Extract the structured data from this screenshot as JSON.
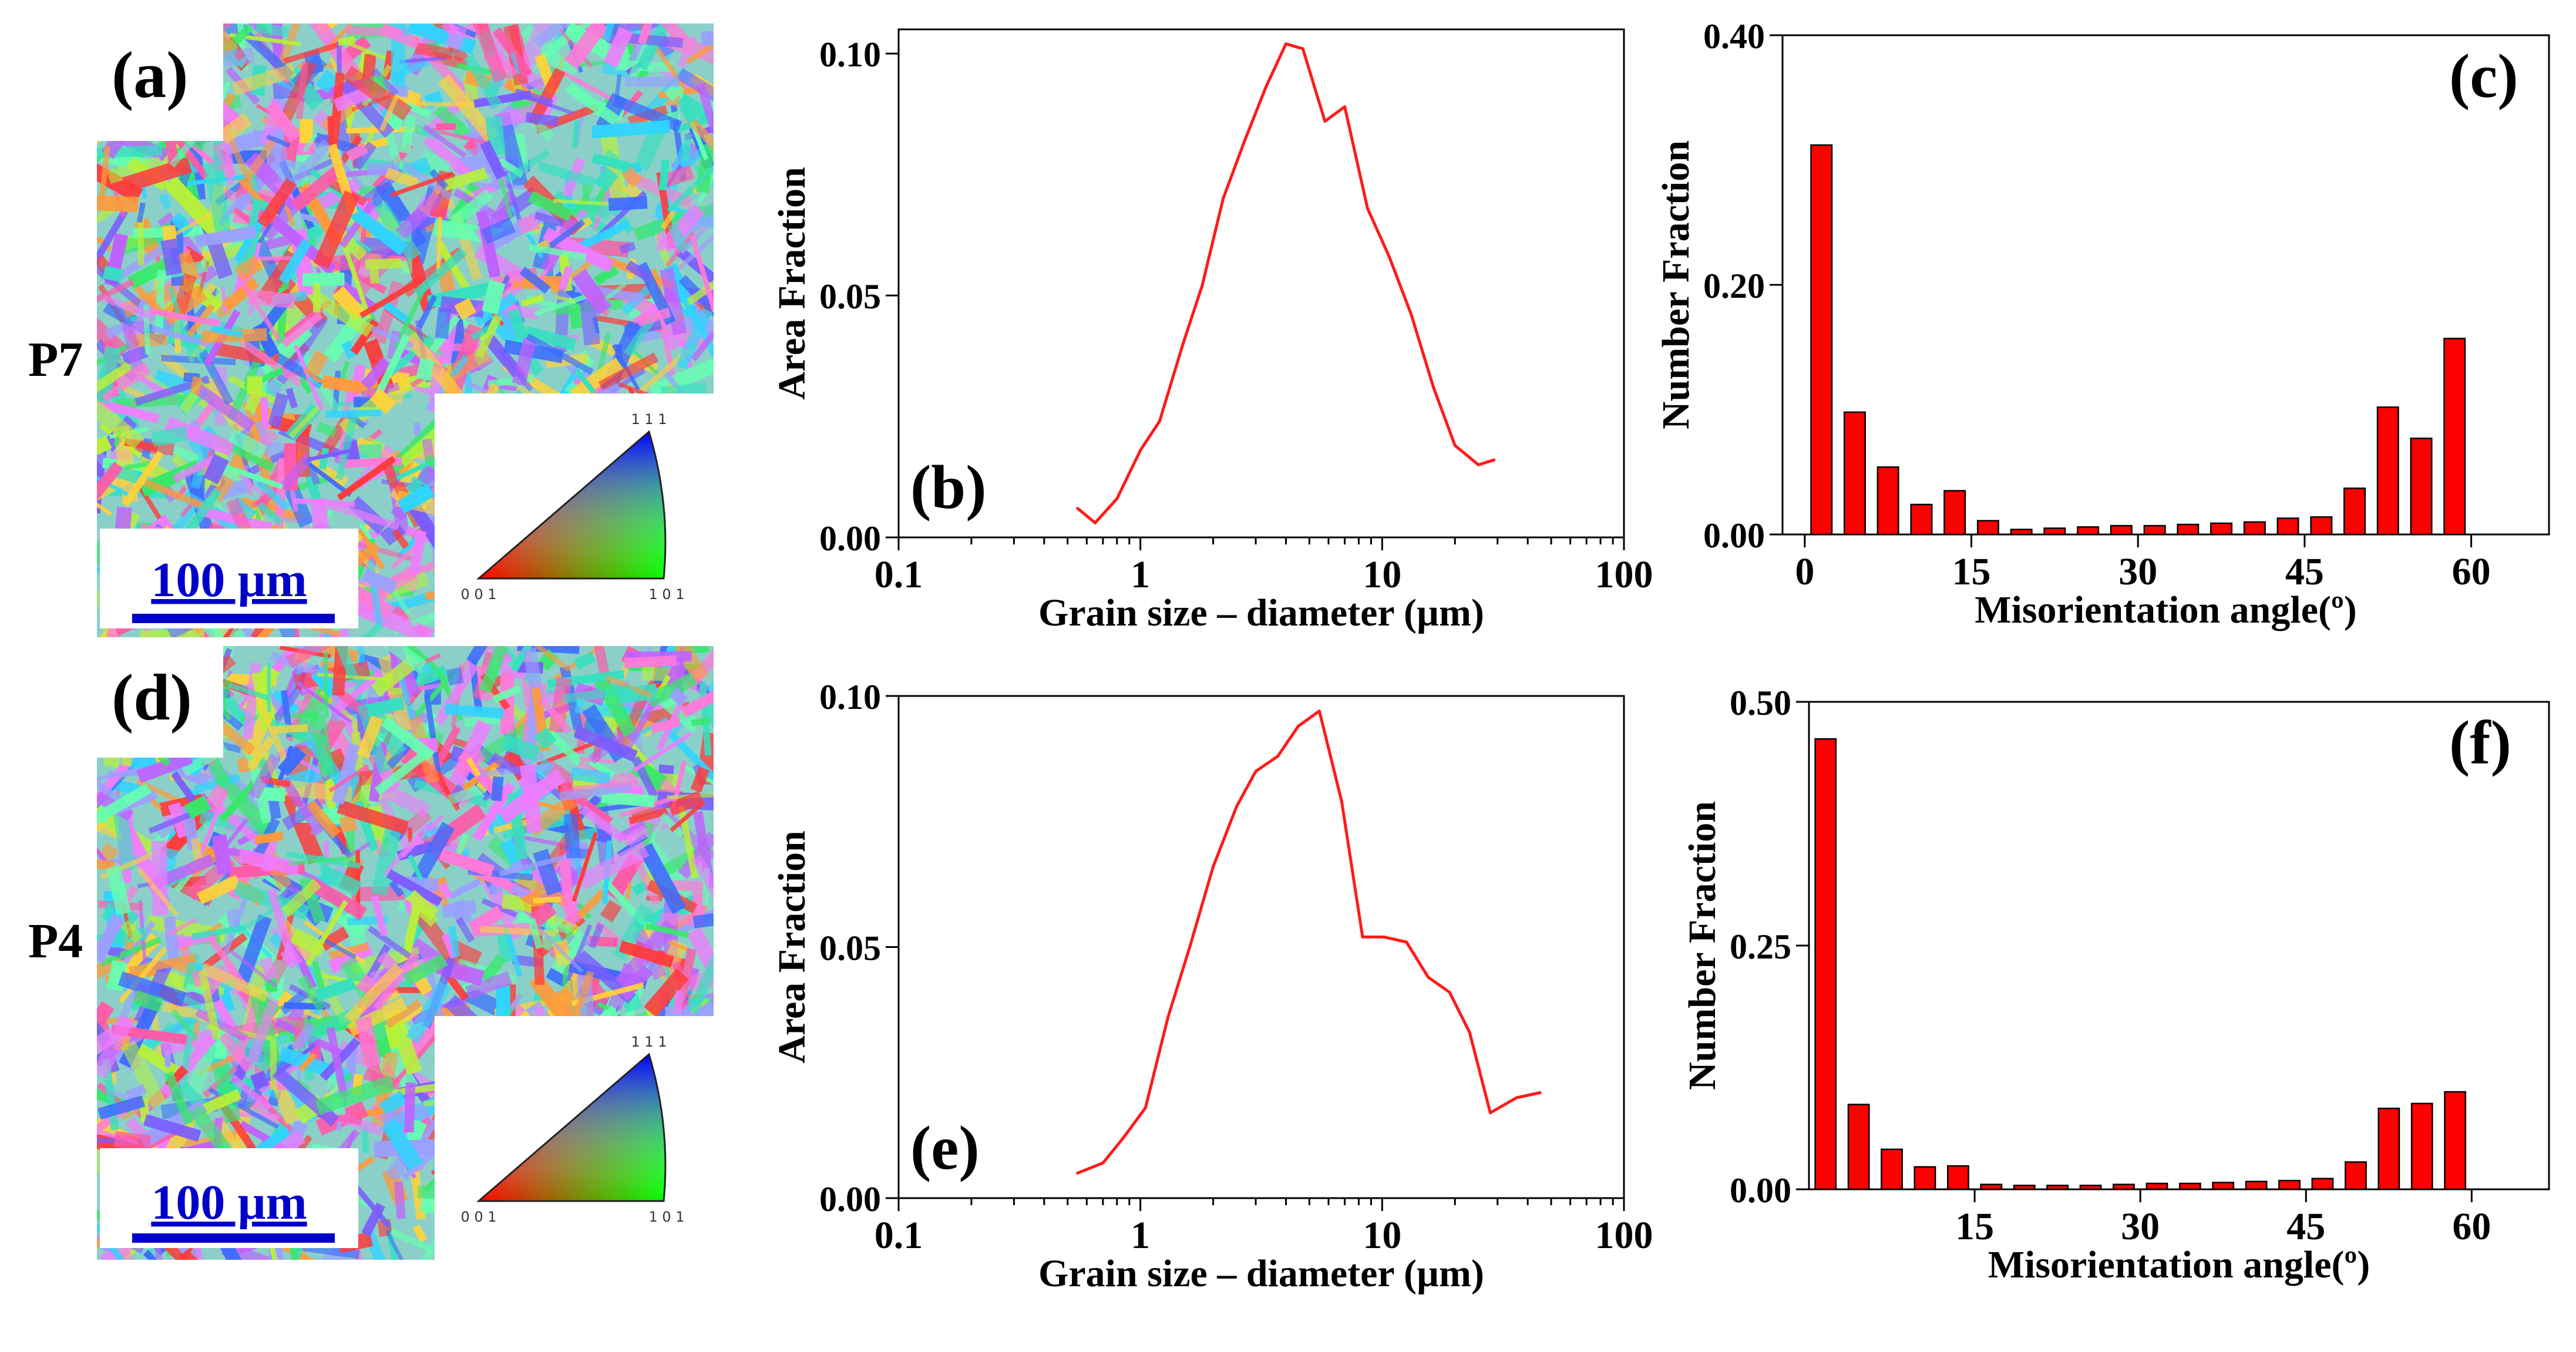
{
  "figure": {
    "row_labels": [
      "P7",
      "P4"
    ],
    "scale_bar_label": "100 µm",
    "ipf_labels": {
      "top": "1 1 1",
      "left": "0 0 1",
      "right": "1 0 1"
    },
    "map_panel_labels": [
      "(a)",
      "(d)"
    ],
    "colors": {
      "line": "#ff1a1a",
      "bar": "#ff0000",
      "scale": "#0000cc"
    }
  },
  "chart_data": [
    {
      "id": "b",
      "panel_label": "(b)",
      "type": "line",
      "xscale": "log",
      "xlabel": "Grain size – diameter (µm)",
      "ylabel": "Area Fraction",
      "xlim": [
        0.1,
        100
      ],
      "ylim": [
        0,
        0.105
      ],
      "xticks": [
        0.1,
        1,
        10,
        100
      ],
      "xtick_labels": [
        "0.1",
        "1",
        "10",
        "100"
      ],
      "yticks": [
        0,
        0.05,
        0.1
      ],
      "ytick_labels": [
        "0.00",
        "0.05",
        "0.10"
      ],
      "x": [
        0.55,
        0.65,
        0.8,
        1.0,
        1.2,
        1.5,
        1.8,
        2.2,
        2.7,
        3.3,
        4.0,
        4.7,
        5.8,
        7.0,
        8.7,
        10.7,
        13.2,
        16.3,
        20,
        25,
        29
      ],
      "y": [
        0.006,
        0.003,
        0.008,
        0.018,
        0.024,
        0.04,
        0.052,
        0.07,
        0.082,
        0.093,
        0.102,
        0.101,
        0.086,
        0.089,
        0.068,
        0.058,
        0.046,
        0.031,
        0.019,
        0.015,
        0.016
      ]
    },
    {
      "id": "c",
      "panel_label": "(c)",
      "type": "bar",
      "xlabel": "Misorientation angle(º)",
      "ylabel": "Number Fraction",
      "xlim": [
        -2,
        67
      ],
      "ylim": [
        0,
        0.4
      ],
      "xticks": [
        0,
        15,
        30,
        45,
        60
      ],
      "xtick_labels": [
        "0",
        "15",
        "30",
        "45",
        "60"
      ],
      "yticks": [
        0,
        0.2,
        0.4
      ],
      "ytick_labels": [
        "0.00",
        "0.20",
        "0.40"
      ],
      "categories": [
        1.5,
        4.5,
        7.5,
        10.5,
        13.5,
        16.5,
        19.5,
        22.5,
        25.5,
        28.5,
        31.5,
        34.5,
        37.5,
        40.5,
        43.5,
        46.5,
        49.5,
        52.5,
        55.5,
        58.5
      ],
      "values": [
        0.312,
        0.098,
        0.054,
        0.024,
        0.035,
        0.011,
        0.004,
        0.005,
        0.006,
        0.007,
        0.007,
        0.008,
        0.009,
        0.01,
        0.013,
        0.014,
        0.037,
        0.102,
        0.077,
        0.157
      ]
    },
    {
      "id": "e",
      "panel_label": "(e)",
      "type": "line",
      "xscale": "log",
      "xlabel": "Grain size – diameter (µm)",
      "ylabel": "Area Fraction",
      "xlim": [
        0.1,
        100
      ],
      "ylim": [
        0,
        0.1
      ],
      "xticks": [
        0.1,
        1,
        10,
        100
      ],
      "xtick_labels": [
        "0.1",
        "1",
        "10",
        "100"
      ],
      "yticks": [
        0,
        0.05,
        0.1
      ],
      "ytick_labels": [
        "0.00",
        "0.05",
        "0.10"
      ],
      "x": [
        0.55,
        0.7,
        0.85,
        1.05,
        1.3,
        1.6,
        2.0,
        2.5,
        3.0,
        3.7,
        4.5,
        5.5,
        6.8,
        8.3,
        10.2,
        12.6,
        15.5,
        19,
        23,
        28,
        36,
        45
      ],
      "y": [
        0.005,
        0.007,
        0.012,
        0.018,
        0.036,
        0.05,
        0.066,
        0.078,
        0.085,
        0.088,
        0.094,
        0.097,
        0.079,
        0.052,
        0.052,
        0.051,
        0.044,
        0.041,
        0.033,
        0.017,
        0.02,
        0.021
      ]
    },
    {
      "id": "f",
      "panel_label": "(f)",
      "type": "bar",
      "xlabel": "Misorientation angle(º)",
      "ylabel": "Number Fraction",
      "xlim": [
        0,
        67
      ],
      "ylim": [
        0,
        0.5
      ],
      "xticks": [
        15,
        30,
        45,
        60
      ],
      "xtick_labels": [
        "15",
        "30",
        "45",
        "60"
      ],
      "yticks": [
        0,
        0.25,
        0.5
      ],
      "ytick_labels": [
        "0.00",
        "0.25",
        "0.50"
      ],
      "categories": [
        1.5,
        4.5,
        7.5,
        10.5,
        13.5,
        16.5,
        19.5,
        22.5,
        25.5,
        28.5,
        31.5,
        34.5,
        37.5,
        40.5,
        43.5,
        46.5,
        49.5,
        52.5,
        55.5,
        58.5
      ],
      "values": [
        0.462,
        0.087,
        0.041,
        0.023,
        0.024,
        0.005,
        0.004,
        0.004,
        0.004,
        0.005,
        0.006,
        0.006,
        0.007,
        0.008,
        0.009,
        0.011,
        0.028,
        0.083,
        0.088,
        0.1
      ]
    }
  ]
}
